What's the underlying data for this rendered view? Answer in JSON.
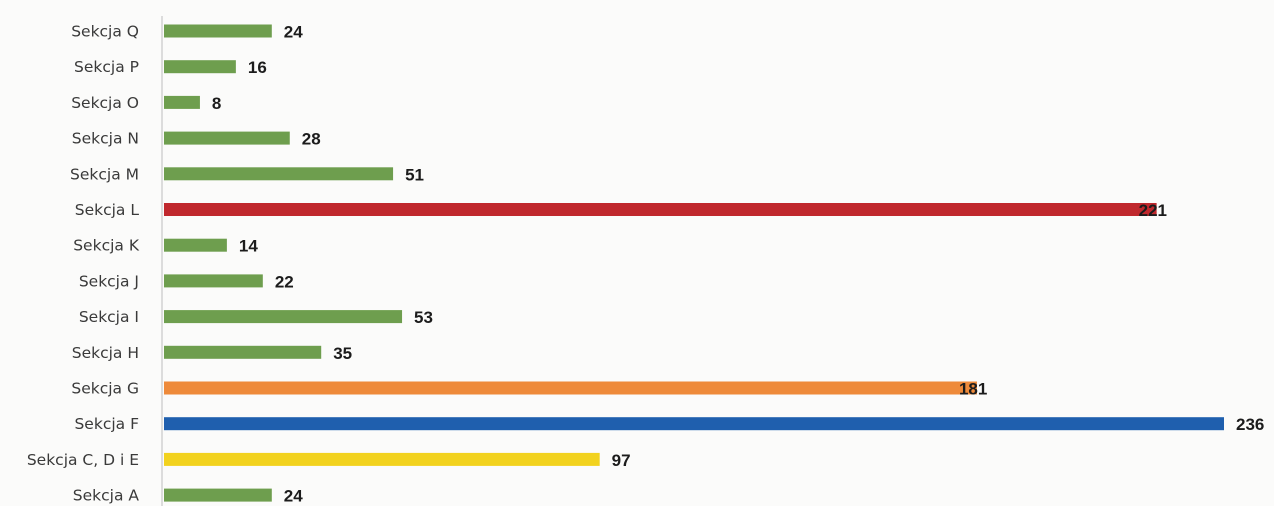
{
  "chart_data": {
    "type": "bar",
    "orientation": "horizontal",
    "title": "",
    "xlabel": "",
    "ylabel": "",
    "categories": [
      "Sekcja Q",
      "Sekcja P",
      "Sekcja O",
      "Sekcja N",
      "Sekcja M",
      "Sekcja L",
      "Sekcja K",
      "Sekcja J",
      "Sekcja I",
      "Sekcja H",
      "Sekcja G",
      "Sekcja F",
      "Sekcja C, D i E",
      "Sekcja A"
    ],
    "values": [
      24,
      16,
      8,
      28,
      51,
      221,
      14,
      22,
      53,
      35,
      181,
      236,
      97,
      24
    ],
    "bar_colors": [
      "#6e9e4e",
      "#6e9e4e",
      "#6e9e4e",
      "#6e9e4e",
      "#6e9e4e",
      "#c0282d",
      "#6e9e4e",
      "#6e9e4e",
      "#6e9e4e",
      "#6e9e4e",
      "#ee8a3a",
      "#1f5fae",
      "#f2d21e",
      "#6e9e4e"
    ],
    "xlim": [
      0,
      236
    ],
    "grid": false,
    "legend": "none"
  }
}
